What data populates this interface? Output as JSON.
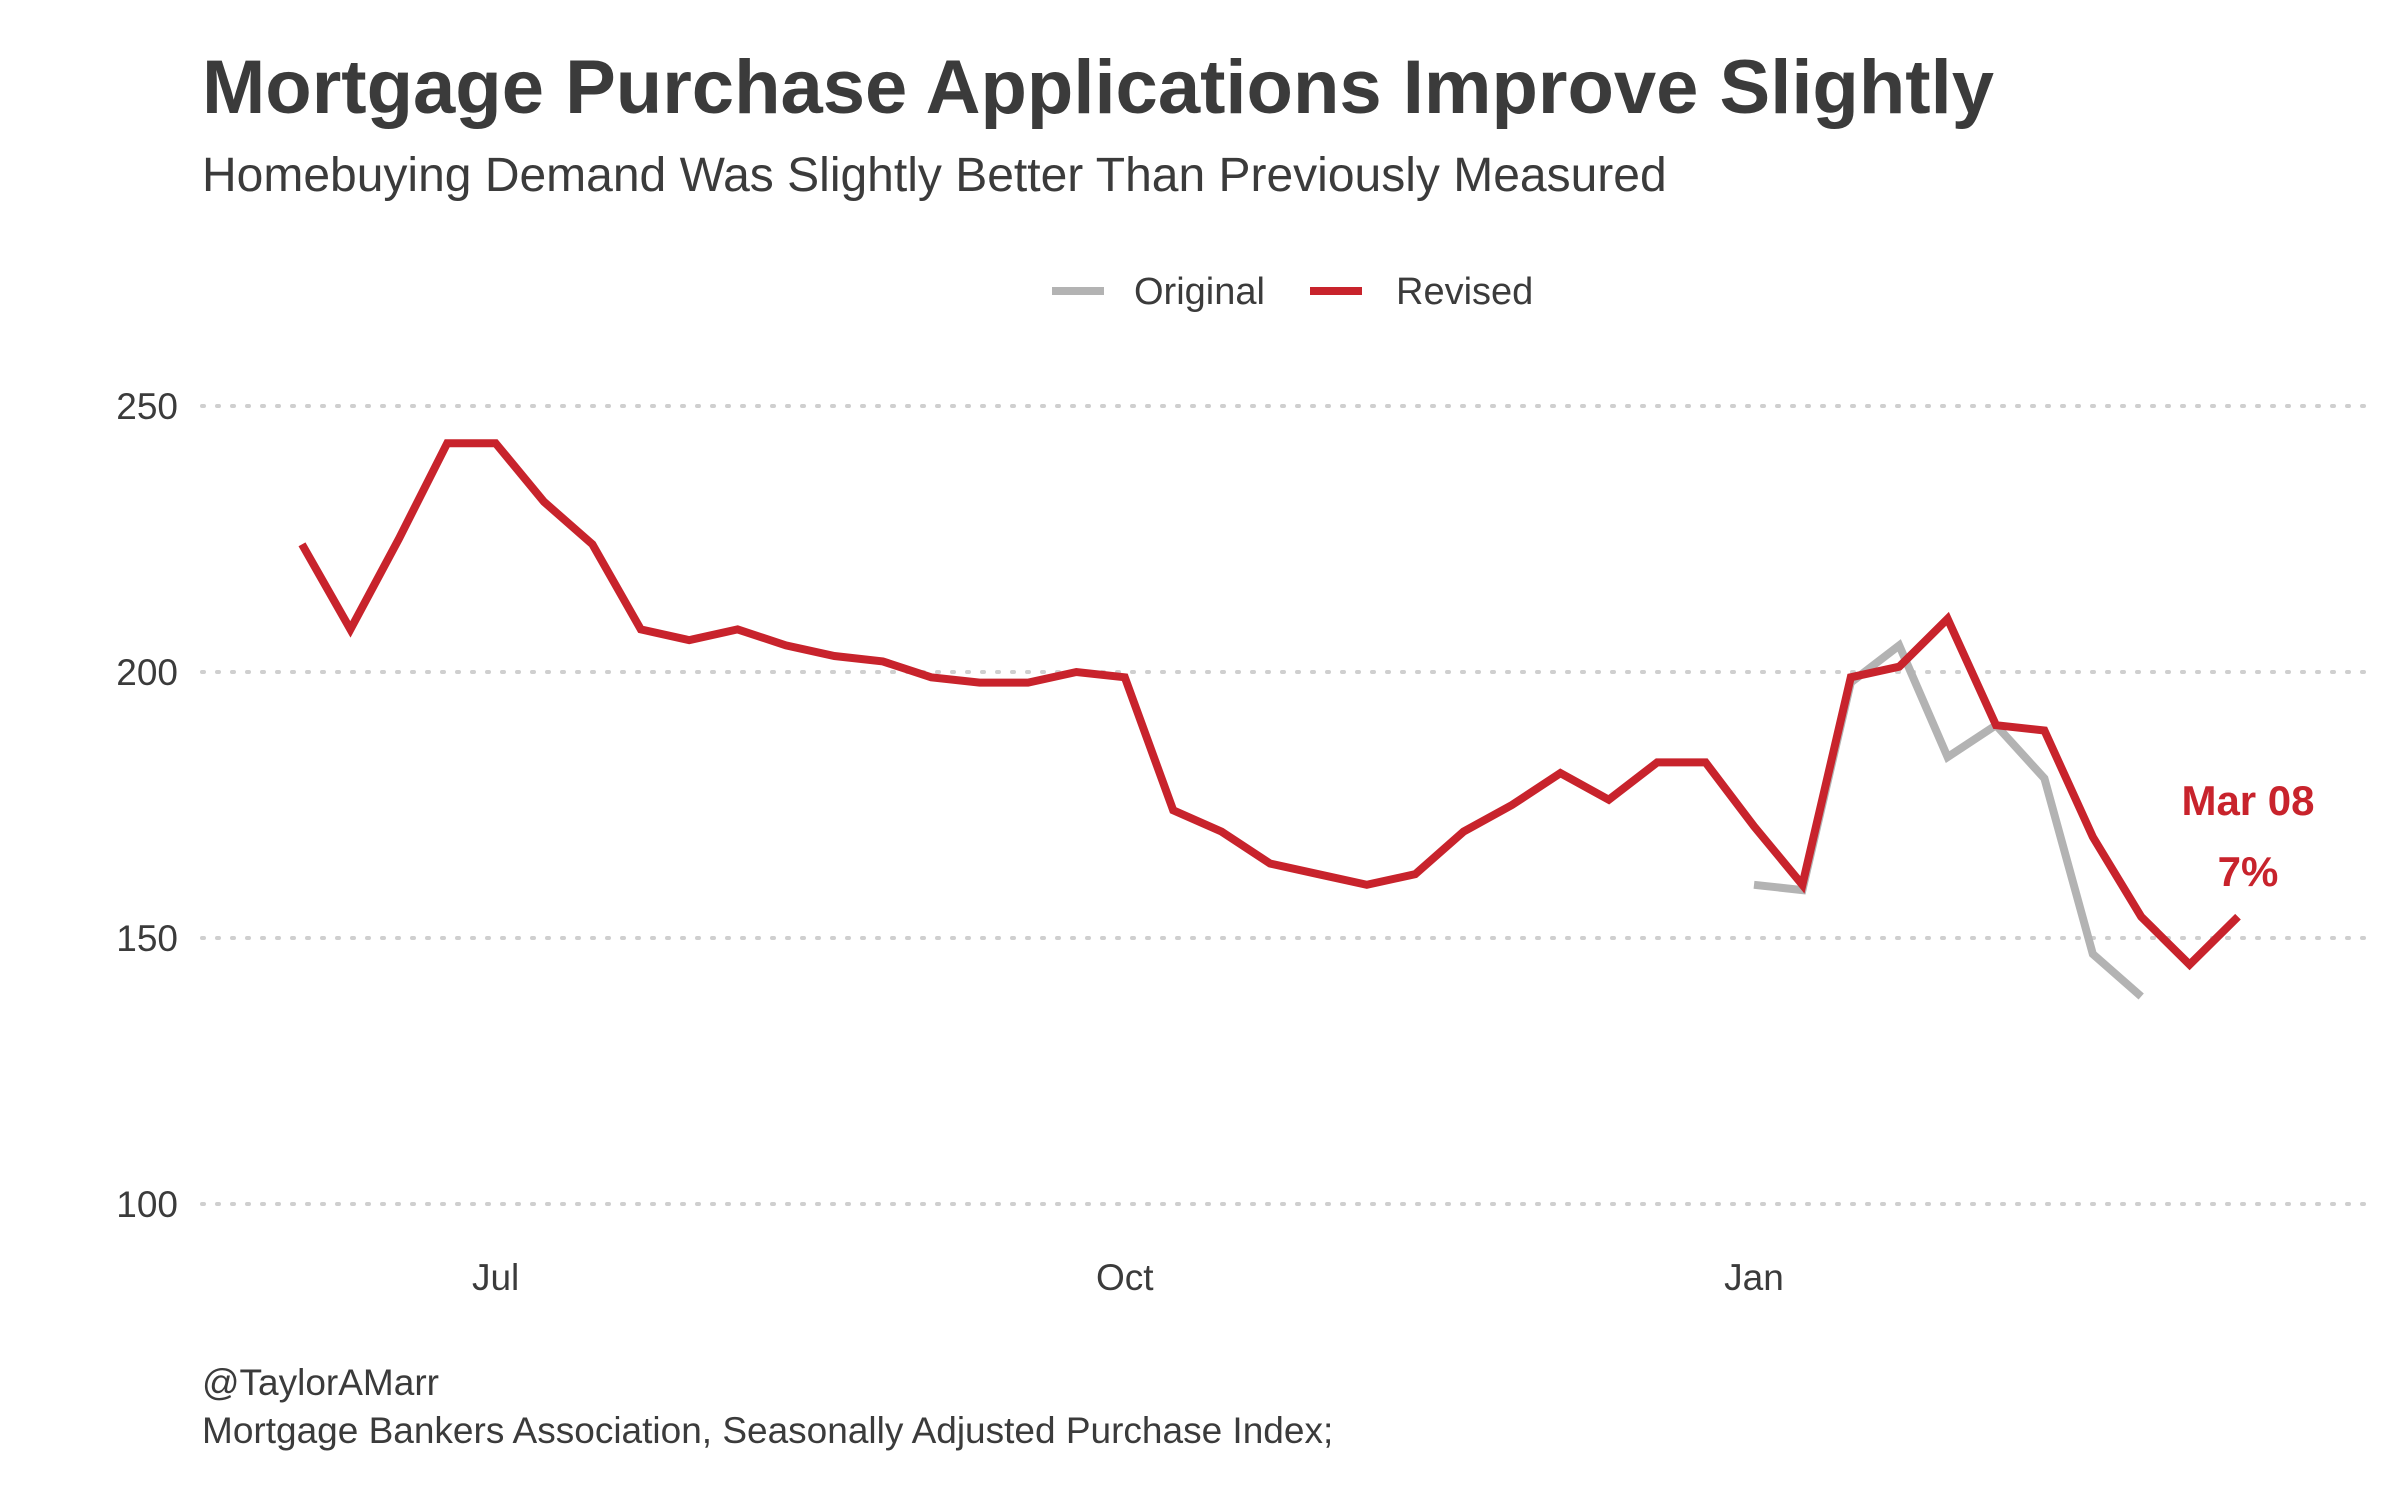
{
  "chart_data": {
    "type": "line",
    "title": "Mortgage Purchase Applications Improve Slightly",
    "subtitle": "Homebuying Demand Was Slightly Better Than Previously Measured",
    "caption": [
      "@TaylorAMarr",
      "Mortgage Bankers Association, Seasonally Adjusted Purchase Index;"
    ],
    "xlabel": "",
    "ylabel": "",
    "ylim": [
      100,
      250
    ],
    "yticks": [
      100,
      150,
      200,
      250
    ],
    "xticks": [
      {
        "label": "Jul",
        "week": 4
      },
      {
        "label": "Oct",
        "week": 17
      },
      {
        "label": "Jan",
        "week": 30
      }
    ],
    "grid": "horizontal dotted",
    "legend_position": "top",
    "series": [
      {
        "name": "Original",
        "color": "#b3b3b3",
        "start_week": 30,
        "values": [
          160,
          159,
          198,
          205,
          184,
          190,
          180,
          147,
          139
        ]
      },
      {
        "name": "Revised",
        "color": "#c8232c",
        "start_week": 0,
        "values": [
          224,
          208,
          225,
          243,
          243,
          232,
          224,
          208,
          206,
          208,
          205,
          203,
          202,
          199,
          198,
          198,
          200,
          199,
          174,
          170,
          164,
          162,
          160,
          162,
          170,
          175,
          181,
          176,
          183,
          183,
          171,
          160,
          199,
          201,
          210,
          190,
          189,
          169,
          154,
          145,
          154
        ]
      }
    ],
    "annotation": {
      "line1": "Mar 08",
      "line2": "7%",
      "color": "#c8232c",
      "week": 40
    }
  }
}
